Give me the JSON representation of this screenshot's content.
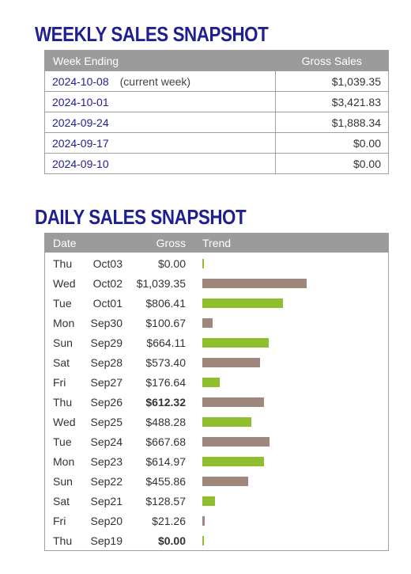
{
  "weekly": {
    "title": "WEEKLY SALES SNAPSHOT",
    "headers": {
      "week": "Week Ending",
      "gross": "Gross Sales"
    },
    "rows": [
      {
        "week": "2024-10-08",
        "note": "(current week)",
        "amount": "$1,039.35"
      },
      {
        "week": "2024-10-01",
        "note": "",
        "amount": "$3,421.83"
      },
      {
        "week": "2024-09-24",
        "note": "",
        "amount": "$1,888.34"
      },
      {
        "week": "2024-09-17",
        "note": "",
        "amount": "$0.00"
      },
      {
        "week": "2024-09-10",
        "note": "",
        "amount": "$0.00"
      }
    ]
  },
  "daily": {
    "title": "DAILY SALES SNAPSHOT",
    "headers": {
      "date": "Date",
      "gross": "Gross",
      "trend": "Trend"
    },
    "colors": {
      "up": "#8fbf2f",
      "down": "#9e877d"
    },
    "rows": [
      {
        "day": "Thu",
        "date": "Oct03",
        "gross": "$0.00",
        "value": 0.0,
        "trend": "up",
        "bold": false
      },
      {
        "day": "Wed",
        "date": "Oct02",
        "gross": "$1,039.35",
        "value": 1039.35,
        "trend": "down",
        "bold": false
      },
      {
        "day": "Tue",
        "date": "Oct01",
        "gross": "$806.41",
        "value": 806.41,
        "trend": "up",
        "bold": false
      },
      {
        "day": "Mon",
        "date": "Sep30",
        "gross": "$100.67",
        "value": 100.67,
        "trend": "down",
        "bold": false
      },
      {
        "day": "Sun",
        "date": "Sep29",
        "gross": "$664.11",
        "value": 664.11,
        "trend": "up",
        "bold": false
      },
      {
        "day": "Sat",
        "date": "Sep28",
        "gross": "$573.40",
        "value": 573.4,
        "trend": "down",
        "bold": false
      },
      {
        "day": "Fri",
        "date": "Sep27",
        "gross": "$176.64",
        "value": 176.64,
        "trend": "up",
        "bold": false
      },
      {
        "day": "Thu",
        "date": "Sep26",
        "gross": "$612.32",
        "value": 612.32,
        "trend": "down",
        "bold": true
      },
      {
        "day": "Wed",
        "date": "Sep25",
        "gross": "$488.28",
        "value": 488.28,
        "trend": "up",
        "bold": false
      },
      {
        "day": "Tue",
        "date": "Sep24",
        "gross": "$667.68",
        "value": 667.68,
        "trend": "down",
        "bold": false
      },
      {
        "day": "Mon",
        "date": "Sep23",
        "gross": "$614.97",
        "value": 614.97,
        "trend": "up",
        "bold": false
      },
      {
        "day": "Sun",
        "date": "Sep22",
        "gross": "$455.86",
        "value": 455.86,
        "trend": "down",
        "bold": false
      },
      {
        "day": "Sat",
        "date": "Sep21",
        "gross": "$128.57",
        "value": 128.57,
        "trend": "up",
        "bold": false
      },
      {
        "day": "Fri",
        "date": "Sep20",
        "gross": "$21.26",
        "value": 21.26,
        "trend": "down",
        "bold": false
      },
      {
        "day": "Thu",
        "date": "Sep19",
        "gross": "$0.00",
        "value": 0.0,
        "trend": "up",
        "bold": true
      }
    ]
  }
}
